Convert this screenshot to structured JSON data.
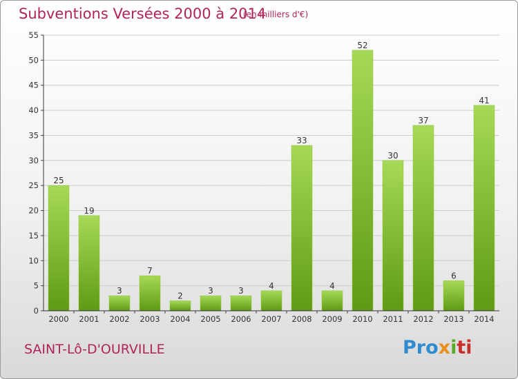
{
  "header": {
    "title": "Subventions Versées 2000 à 2014",
    "subtitle": "(en milliers d'€)"
  },
  "footer": {
    "commune": "SAINT-Lô-D'OURVILLE",
    "logo": [
      "Pro",
      "x",
      "i",
      "ti"
    ]
  },
  "colors": {
    "title": "#b0245a",
    "bar_light": "#a6d957",
    "bar_dark": "#5f9a15",
    "grid": "#cccccc",
    "logo_blue": "#2e8bd0",
    "logo_orange": "#e8901b",
    "logo_green": "#5aaa2a",
    "logo_red": "#c8302c"
  },
  "chart_data": {
    "type": "bar",
    "title": "Subventions Versées 2000 à 2014",
    "subtitle": "(en milliers d'€)",
    "xlabel": "",
    "ylabel": "",
    "categories": [
      "2000",
      "2001",
      "2002",
      "2003",
      "2004",
      "2005",
      "2006",
      "2007",
      "2008",
      "2009",
      "2010",
      "2011",
      "2012",
      "2013",
      "2014"
    ],
    "values": [
      25,
      19,
      3,
      7,
      2,
      3,
      3,
      4,
      33,
      4,
      52,
      30,
      37,
      6,
      41
    ],
    "ylim": [
      0,
      55
    ],
    "yticks": [
      0,
      5,
      10,
      15,
      20,
      25,
      30,
      35,
      40,
      45,
      50,
      55
    ],
    "grid": true,
    "data_labels": true,
    "legend": "none"
  }
}
